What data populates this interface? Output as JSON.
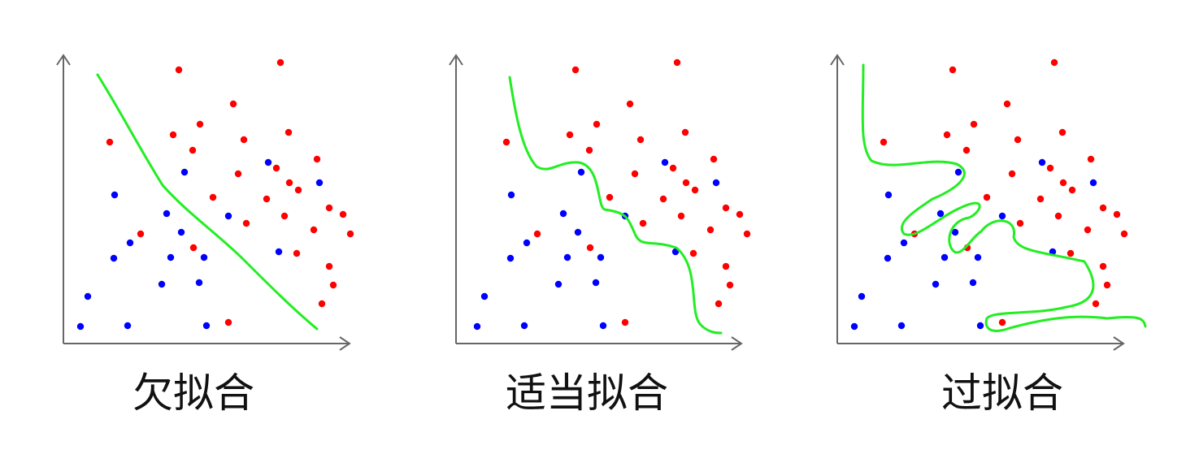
{
  "colors": {
    "class_a": "#ff0000",
    "class_b": "#0000ff",
    "fit_curve": "#22ee22",
    "axis": "#666666"
  },
  "panels": [
    {
      "caption": "欠拟合"
    },
    {
      "caption": "适当拟合"
    },
    {
      "caption": "过拟合"
    }
  ]
}
